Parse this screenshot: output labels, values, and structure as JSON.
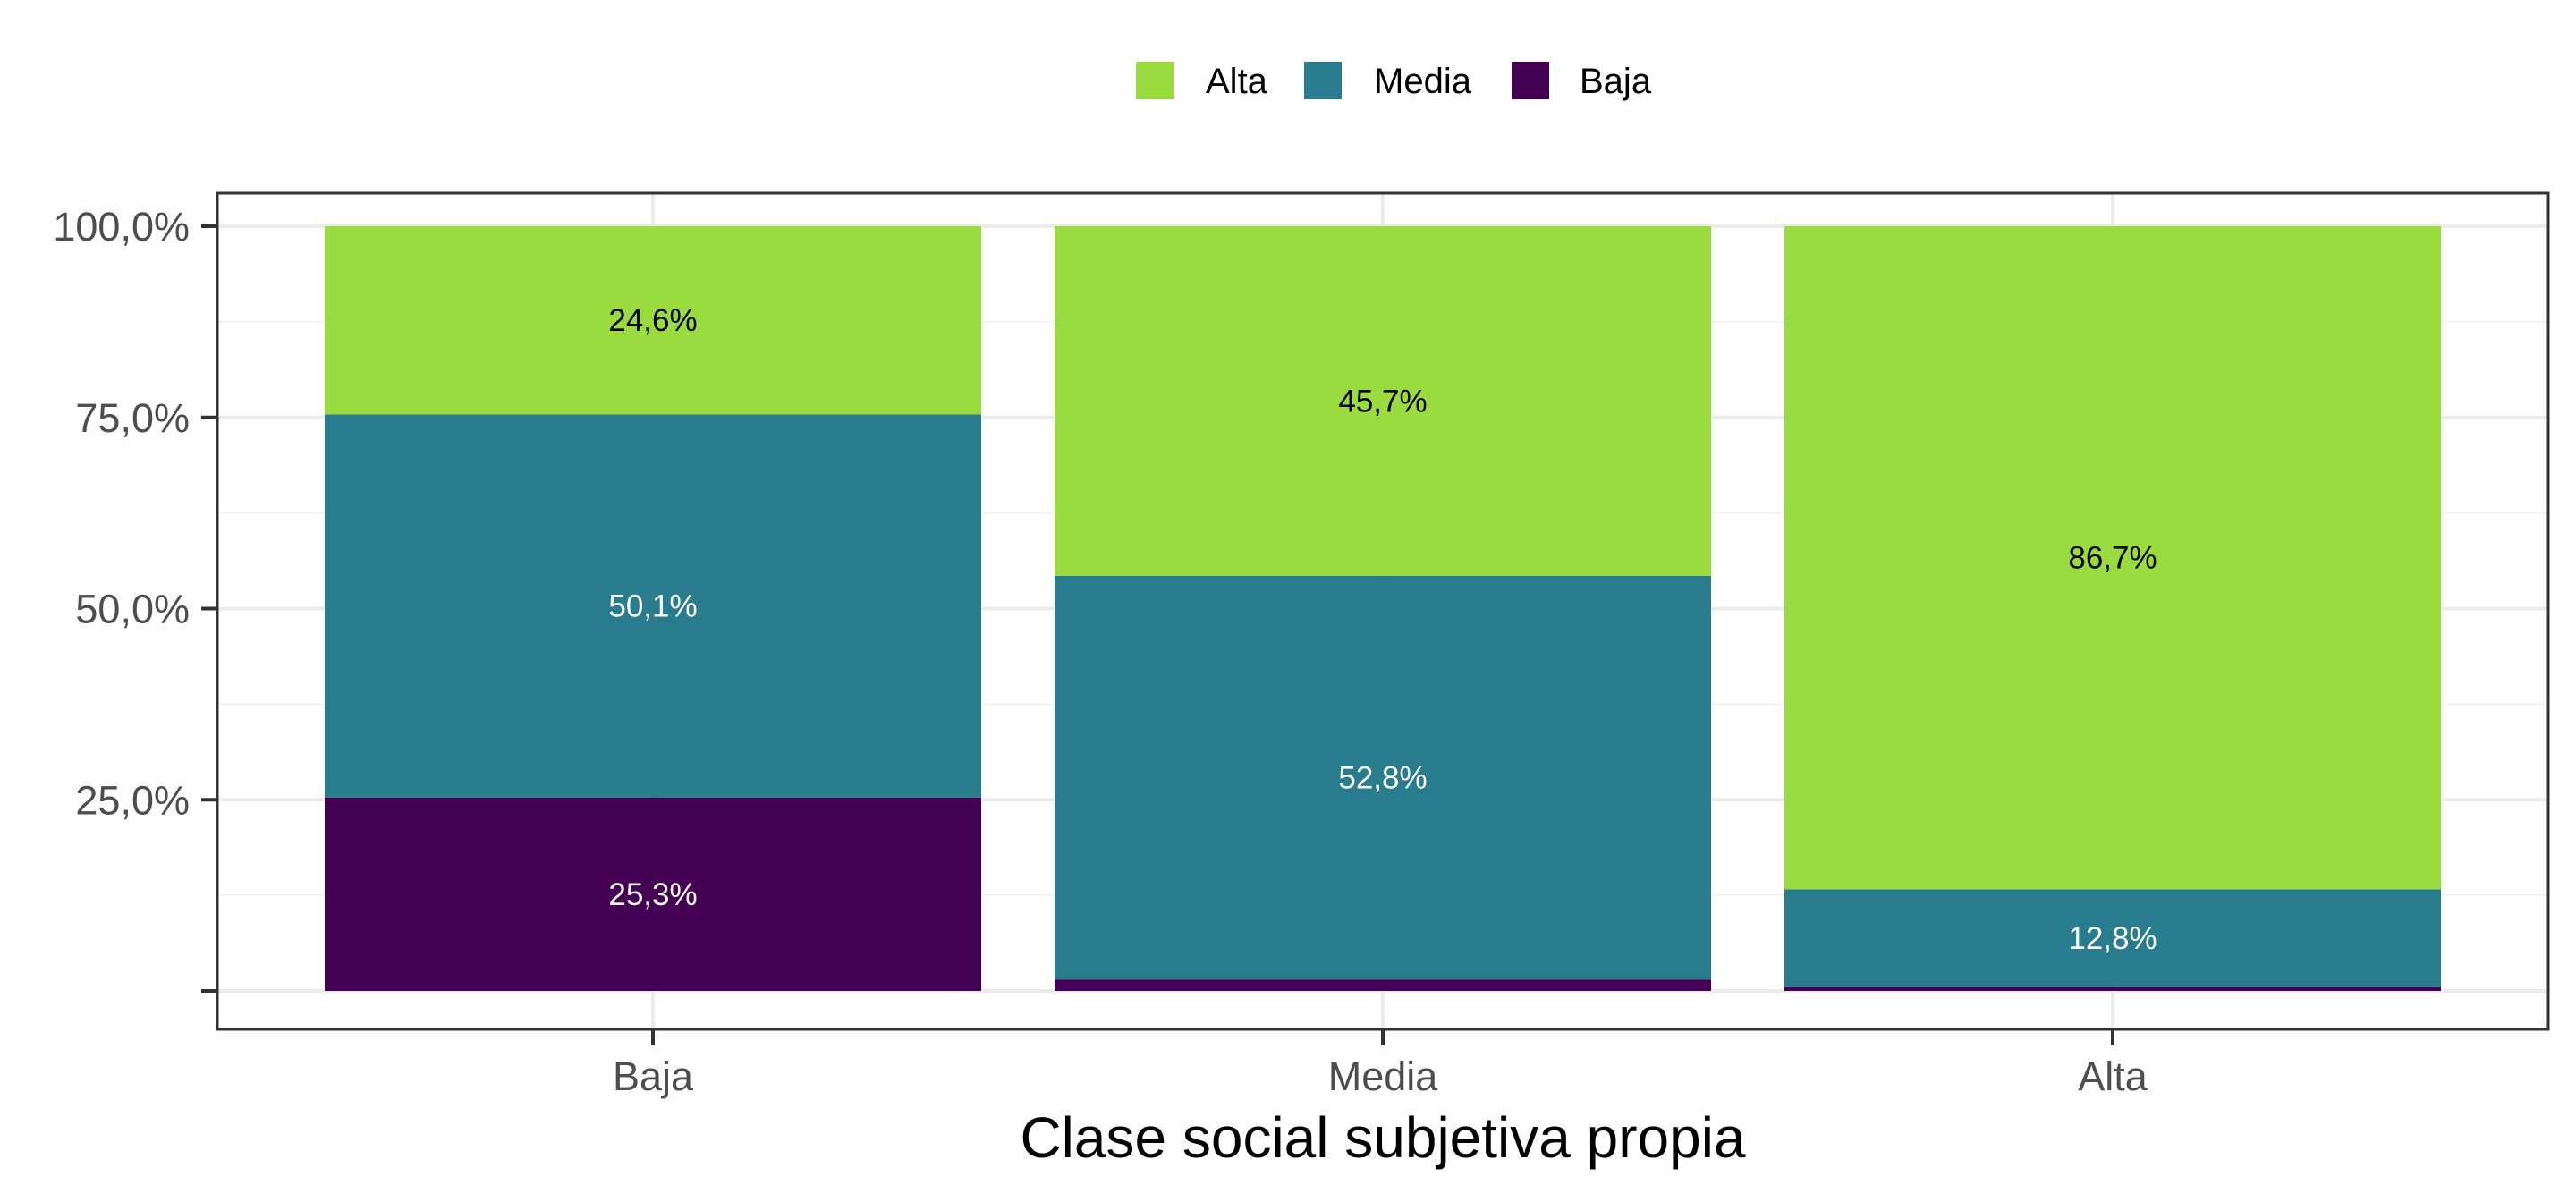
{
  "chart_data": {
    "type": "bar",
    "stacked": true,
    "normalized": true,
    "categories": [
      "Baja",
      "Media",
      "Alta"
    ],
    "xlabel": "Clase social subjetiva propia",
    "ylabel": "",
    "ylim": [
      0,
      100
    ],
    "yticks": [
      0,
      25,
      50,
      75,
      100
    ],
    "ytick_labels": [
      "",
      "25,0%",
      "50,0%",
      "75,0%",
      "100,0%"
    ],
    "legend_position": "top",
    "grid": true,
    "series": [
      {
        "name": "Baja",
        "color": "#440154",
        "values": [
          25.3,
          1.5,
          0.5
        ],
        "labels": [
          "25,3%",
          "",
          ""
        ],
        "label_color": "#ffffff"
      },
      {
        "name": "Media",
        "color": "#287C8E",
        "values": [
          50.1,
          52.8,
          12.8
        ],
        "labels": [
          "50,1%",
          "52,8%",
          "12,8%"
        ],
        "label_color": "#ffffff"
      },
      {
        "name": "Alta",
        "color": "#9ADB3F",
        "values": [
          24.6,
          45.7,
          86.7
        ],
        "labels": [
          "24,6%",
          "45,7%",
          "86,7%"
        ],
        "label_color": "#000000"
      }
    ],
    "legend_order": [
      "Alta",
      "Media",
      "Baja"
    ]
  }
}
